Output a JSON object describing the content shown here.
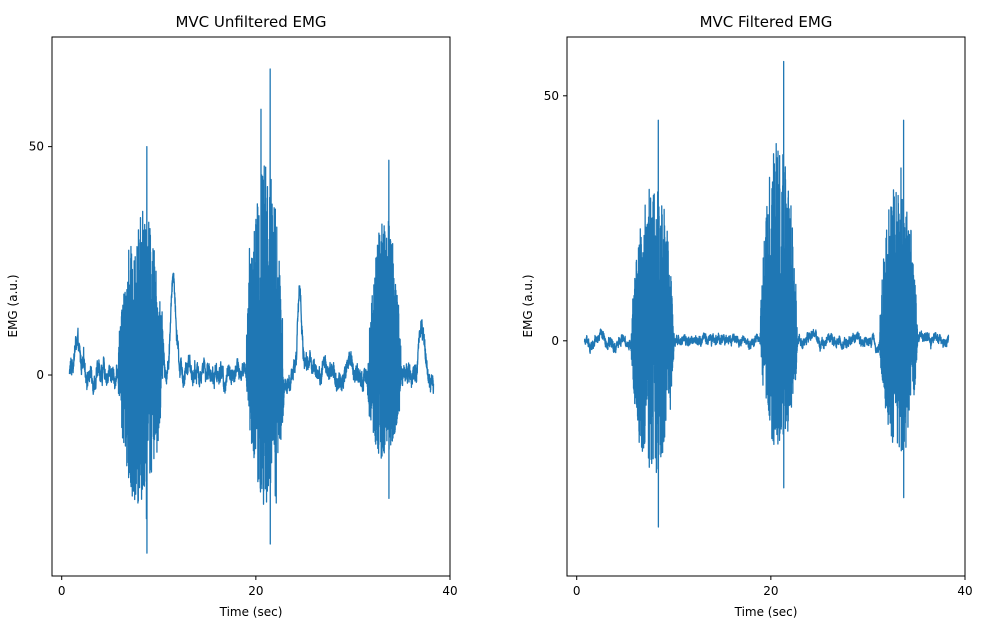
{
  "chart_data": [
    {
      "type": "line",
      "title": "MVC Unfiltered EMG",
      "xlabel": "Time (sec)",
      "ylabel": "EMG (a.u.)",
      "xlim": [
        -1,
        40
      ],
      "ylim": [
        -44,
        74
      ],
      "xticks": [
        0,
        20,
        40
      ],
      "yticks": [
        0,
        50
      ],
      "color": "#1f77b4",
      "grid": false,
      "duration_sec": 38.3,
      "baseline": {
        "mean": 0.5,
        "spread": 2.5
      },
      "bursts": [
        {
          "start": 5.8,
          "end": 11.2,
          "max": 50,
          "min": -39
        },
        {
          "start": 19.0,
          "end": 23.5,
          "max": 67,
          "min": -37
        },
        {
          "start": 31.5,
          "end": 35.5,
          "max": 47,
          "min": -27
        }
      ],
      "bumps": [
        {
          "t": 1.5,
          "value": 7
        },
        {
          "t": 11.5,
          "value": 22
        },
        {
          "t": 24.5,
          "value": 17
        },
        {
          "t": 37.0,
          "value": 9
        }
      ]
    },
    {
      "type": "line",
      "title": "MVC Filtered EMG",
      "xlabel": "Time (sec)",
      "ylabel": "EMG (a.u.)",
      "xlim": [
        -1,
        40
      ],
      "ylim": [
        -48,
        62
      ],
      "xticks": [
        0,
        20,
        40
      ],
      "yticks": [
        0,
        50
      ],
      "color": "#1f77b4",
      "grid": false,
      "duration_sec": 38.3,
      "baseline": {
        "mean": 0,
        "spread": 1.2
      },
      "bursts": [
        {
          "start": 5.6,
          "end": 10.7,
          "max": 45,
          "min": -38
        },
        {
          "start": 18.9,
          "end": 23.3,
          "max": 57,
          "min": -30
        },
        {
          "start": 31.2,
          "end": 35.7,
          "max": 45,
          "min": -32
        }
      ],
      "bumps": []
    }
  ]
}
